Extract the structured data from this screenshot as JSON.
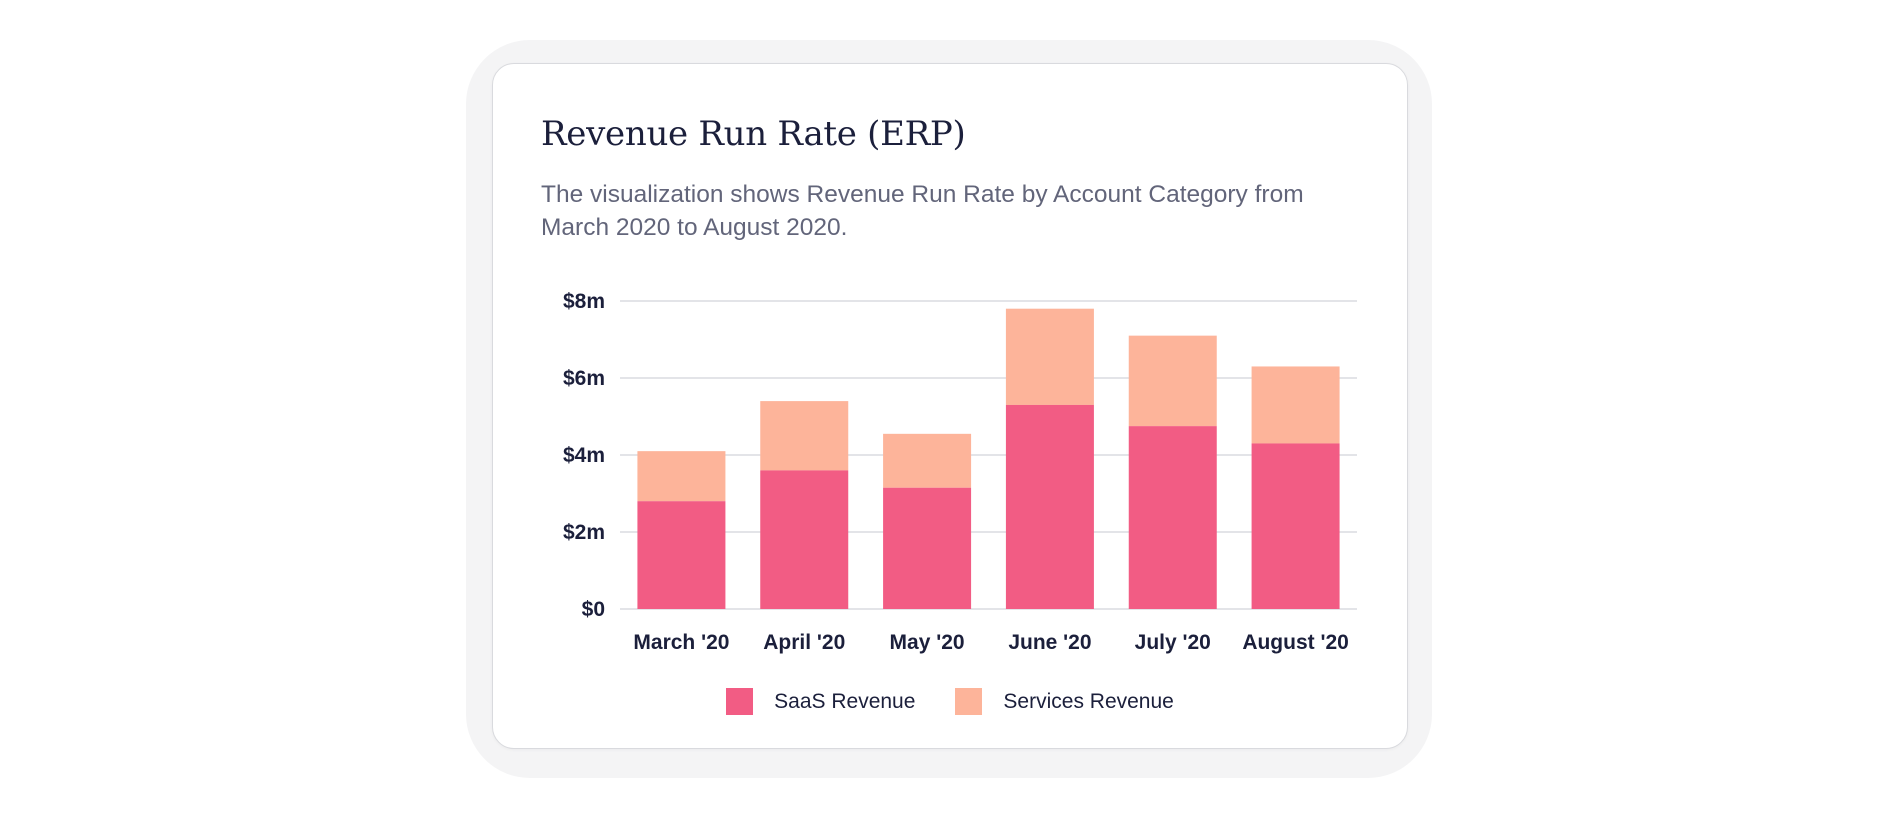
{
  "card": {
    "title": "Revenue Run Rate (ERP)",
    "description": "The visualization shows Revenue Run Rate by Account Category from March 2020 to August 2020."
  },
  "colors": {
    "saas": "#f25c84",
    "services": "#fdb49a",
    "grid": "#e3e4e8",
    "text": "#1b1f3b"
  },
  "chart_data": {
    "type": "bar",
    "stacked": true,
    "title": "Revenue Run Rate (ERP)",
    "xlabel": "",
    "ylabel": "",
    "categories": [
      "March '20",
      "April '20",
      "May '20",
      "June '20",
      "July '20",
      "August '20"
    ],
    "series": [
      {
        "name": "SaaS Revenue",
        "values": [
          2.8,
          3.6,
          3.15,
          5.3,
          4.75,
          4.3
        ]
      },
      {
        "name": "Services Revenue",
        "values": [
          1.3,
          1.8,
          1.4,
          2.5,
          2.35,
          2.0
        ]
      }
    ],
    "ylim": [
      0,
      8
    ],
    "yticks": [
      0,
      2,
      4,
      6,
      8
    ],
    "ytick_labels": [
      "$0",
      "$2m",
      "$4m",
      "$6m",
      "$8m"
    ],
    "grid": true,
    "legend_position": "bottom-center"
  },
  "legend": {
    "items": [
      {
        "label": "SaaS Revenue",
        "color": "#f25c84"
      },
      {
        "label": "Services Revenue",
        "color": "#fdb49a"
      }
    ]
  }
}
